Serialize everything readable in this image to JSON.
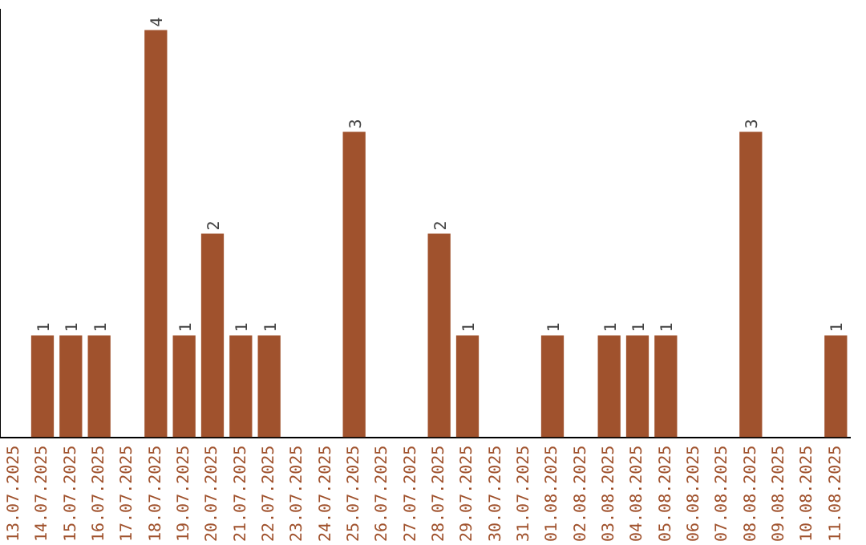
{
  "chart_data": {
    "type": "bar",
    "color": "#a0522d",
    "categories": [
      "13.07.2025",
      "14.07.2025",
      "15.07.2025",
      "16.07.2025",
      "17.07.2025",
      "18.07.2025",
      "19.07.2025",
      "20.07.2025",
      "21.07.2025",
      "22.07.2025",
      "23.07.2025",
      "24.07.2025",
      "25.07.2025",
      "26.07.2025",
      "27.07.2025",
      "28.07.2025",
      "29.07.2025",
      "30.07.2025",
      "31.07.2025",
      "01.08.2025",
      "02.08.2025",
      "03.08.2025",
      "04.08.2025",
      "05.08.2025",
      "06.08.2025",
      "07.08.2025",
      "08.08.2025",
      "09.08.2025",
      "10.08.2025",
      "11.08.2025"
    ],
    "values": [
      null,
      1,
      1,
      1,
      null,
      4,
      1,
      2,
      1,
      1,
      null,
      null,
      3,
      null,
      null,
      2,
      1,
      null,
      null,
      1,
      null,
      1,
      1,
      1,
      null,
      null,
      3,
      null,
      null,
      1
    ],
    "data_labels": true,
    "tick_labels": "x",
    "grid": false,
    "legend": false
  }
}
